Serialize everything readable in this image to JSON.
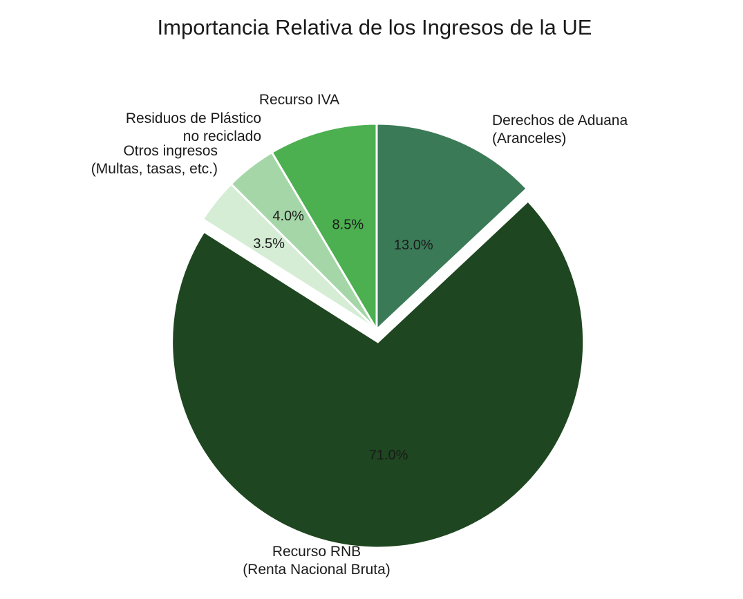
{
  "chart_data": {
    "type": "pie",
    "title": "Importancia Relativa de los Ingresos de la UE",
    "start_angle_deg": 0,
    "direction": "clockwise",
    "slices": [
      {
        "label": "Derechos de Aduana\n(Aranceles)",
        "value": 13.0,
        "display": "13.0%",
        "color": "#3b7a57",
        "exploded": false
      },
      {
        "label": "Recurso RNB\n(Renta Nacional Bruta)",
        "value": 71.0,
        "display": "71.0%",
        "color": "#1e4620",
        "exploded": true
      },
      {
        "label": "Otros ingresos\n(Multas, tasas, etc.)",
        "value": 3.5,
        "display": "3.5%",
        "color": "#d4edd4",
        "exploded": false
      },
      {
        "label": "Residuos de Plástico\nno reciclado",
        "value": 4.0,
        "display": "4.0%",
        "color": "#a5d6a7",
        "exploded": false
      },
      {
        "label": "Recurso IVA",
        "value": 8.5,
        "display": "8.5%",
        "color": "#4caf50",
        "exploded": false
      }
    ]
  }
}
